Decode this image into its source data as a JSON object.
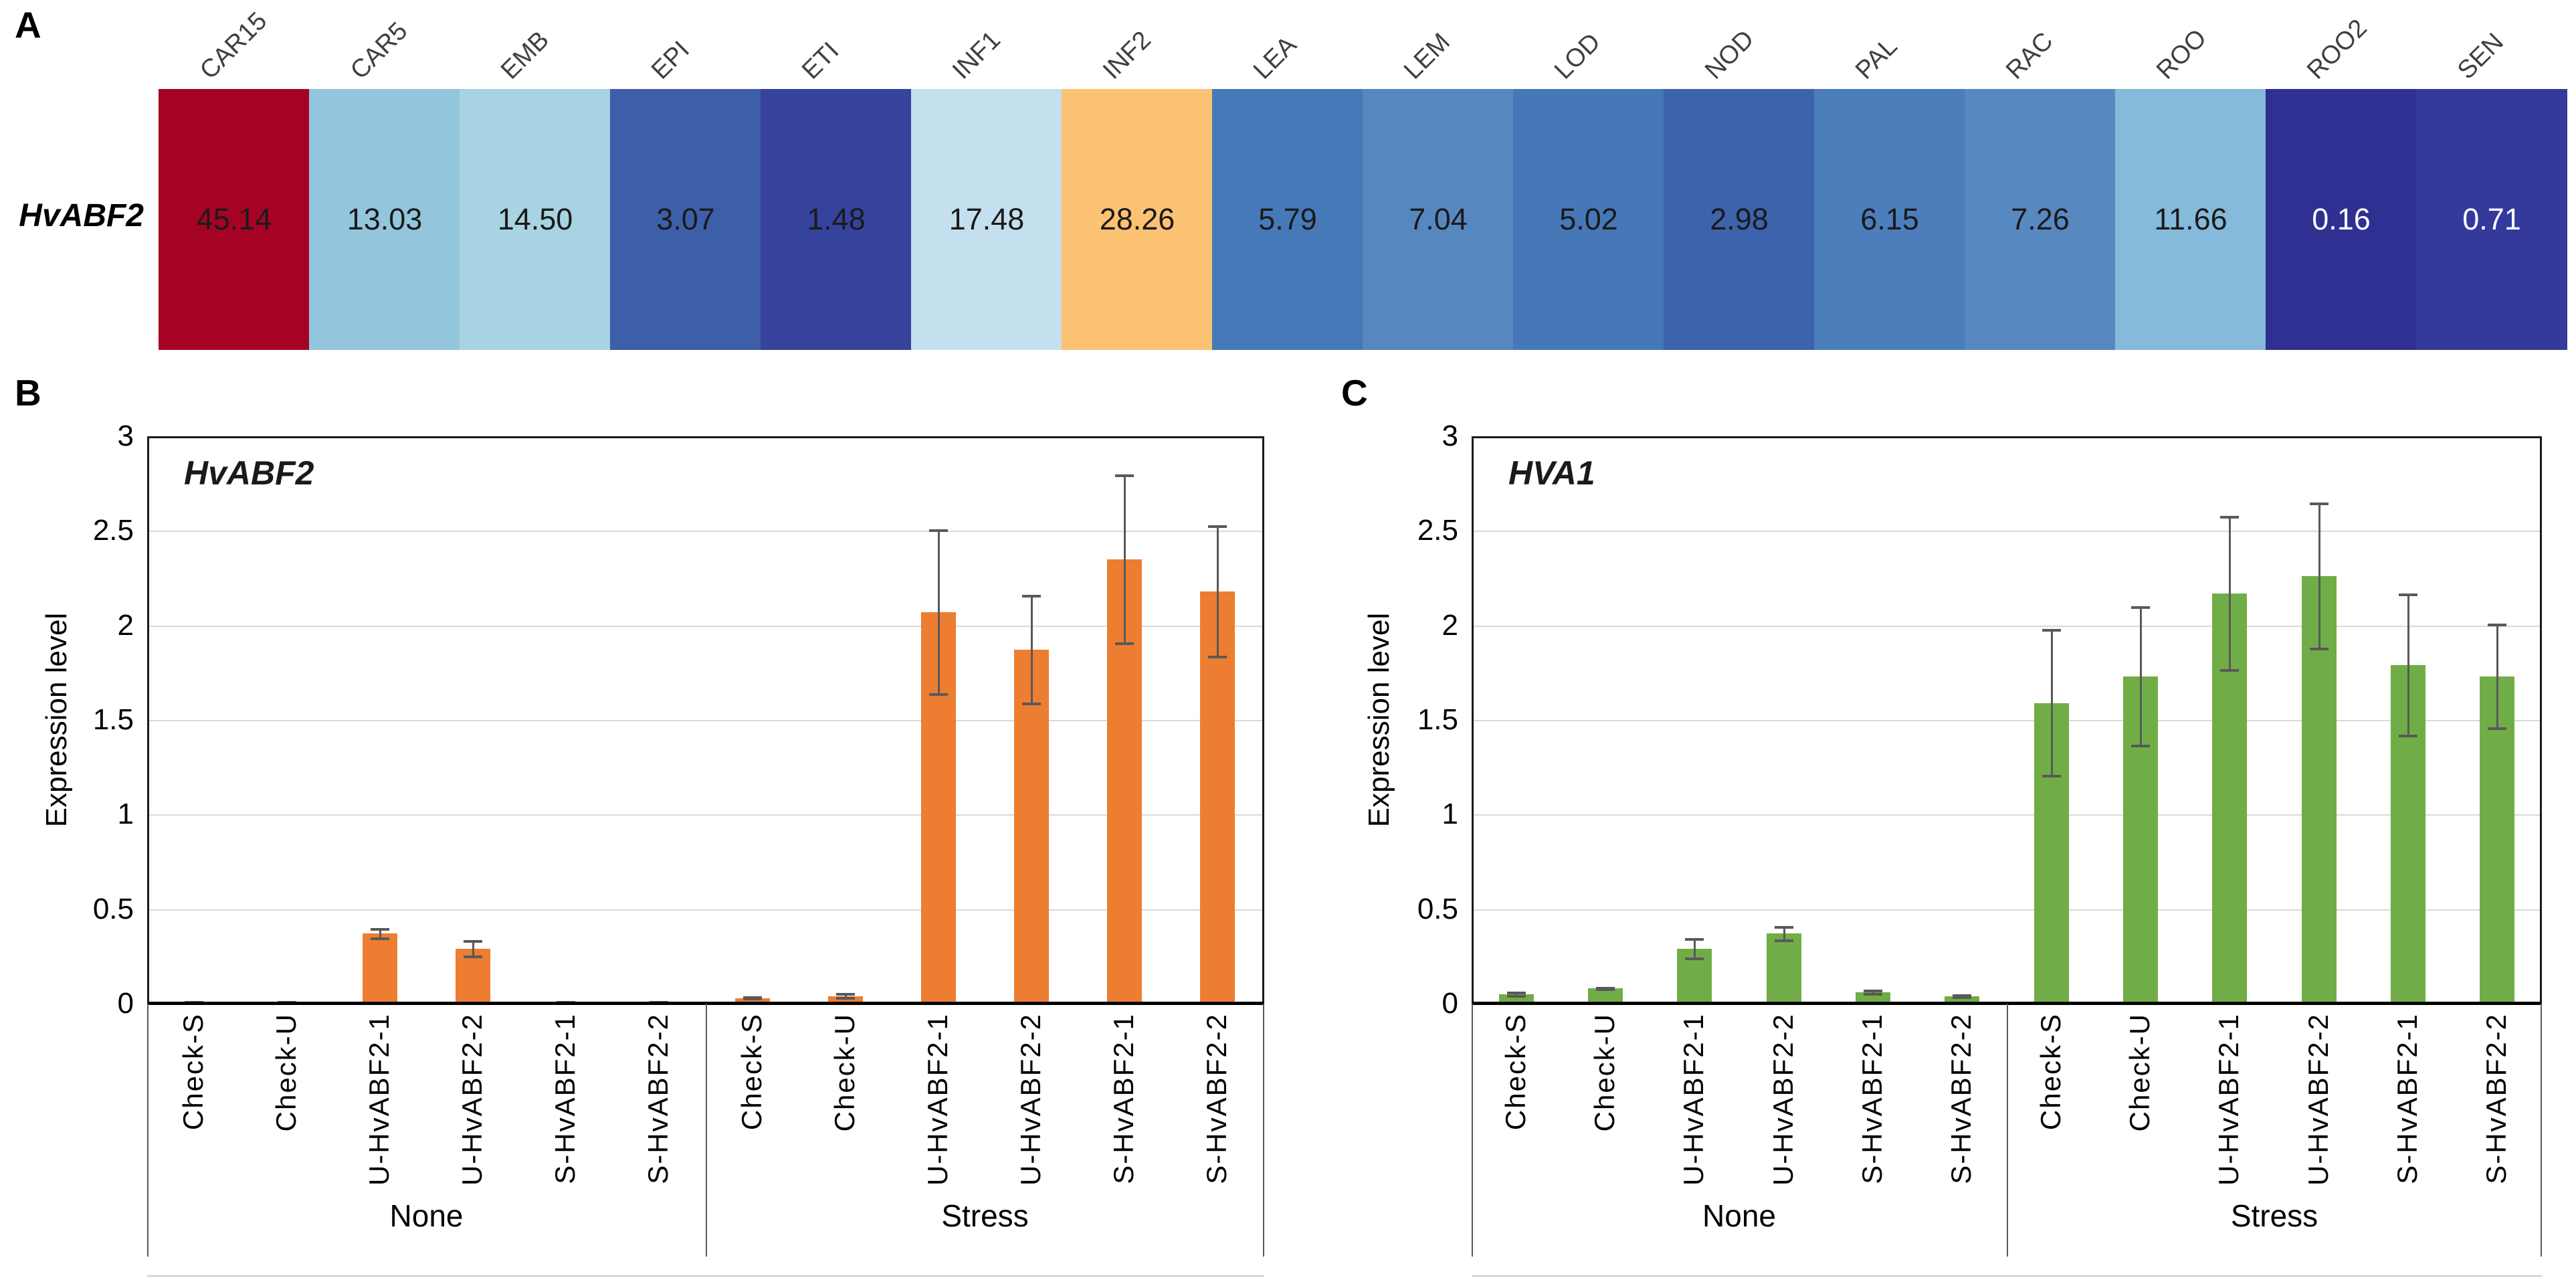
{
  "panels": {
    "a": {
      "label": "A"
    },
    "b": {
      "label": "B"
    },
    "c": {
      "label": "C"
    }
  },
  "chart_data": [
    {
      "id": "heatmap-A",
      "type": "heatmap",
      "row_label": "HvABF2",
      "columns": [
        {
          "label": "CAR15",
          "value": "45.14",
          "color": "#A60324",
          "text": "#1a1a1a"
        },
        {
          "label": "CAR5",
          "value": "13.03",
          "color": "#93C6DD",
          "text": "#1a1a1a"
        },
        {
          "label": "EMB",
          "value": "14.50",
          "color": "#A8D3E2",
          "text": "#1a1a1a"
        },
        {
          "label": "EPI",
          "value": "3.07",
          "color": "#3D5FA9",
          "text": "#1a1a1a"
        },
        {
          "label": "ETI",
          "value": "1.48",
          "color": "#36439D",
          "text": "#1a1a1a"
        },
        {
          "label": "INF1",
          "value": "17.48",
          "color": "#C4E0EE",
          "text": "#1a1a1a"
        },
        {
          "label": "INF2",
          "value": "28.26",
          "color": "#FBC273",
          "text": "#1a1a1a"
        },
        {
          "label": "LEA",
          "value": "5.79",
          "color": "#4679B8",
          "text": "#1a1a1a"
        },
        {
          "label": "LEM",
          "value": "7.04",
          "color": "#5787BF",
          "text": "#1a1a1a"
        },
        {
          "label": "LOD",
          "value": "5.02",
          "color": "#4677B7",
          "text": "#1a1a1a"
        },
        {
          "label": "NOD",
          "value": "2.98",
          "color": "#3C63AC",
          "text": "#1a1a1a"
        },
        {
          "label": "PAL",
          "value": "6.15",
          "color": "#4C7EBB",
          "text": "#1a1a1a"
        },
        {
          "label": "RAC",
          "value": "7.26",
          "color": "#5888C0",
          "text": "#1a1a1a"
        },
        {
          "label": "ROO",
          "value": "11.66",
          "color": "#85BADB",
          "text": "#1a1a1a"
        },
        {
          "label": "ROO2",
          "value": "0.16",
          "color": "#2F3092",
          "text": "#ffffff"
        },
        {
          "label": "SEN",
          "value": "0.71",
          "color": "#343A9C",
          "text": "#ffffff"
        }
      ]
    },
    {
      "id": "B",
      "type": "bar",
      "title": "HvABF2",
      "ylabel": "Expression level",
      "ylim": [
        0,
        3
      ],
      "ytick_labels": [
        "0",
        "0.5",
        "1",
        "1.5",
        "2",
        "2.5",
        "3"
      ],
      "grid": true,
      "legend": "none",
      "bar_color": "#ED7D31",
      "error_color": "#595959",
      "groups": [
        "None",
        "Stress"
      ],
      "categories": [
        "Check-S",
        "Check-U",
        "U-HvABF2-1",
        "U-HvABF2-2",
        "S-HvABF2-1",
        "S-HvABF2-2",
        "Check-S",
        "Check-U",
        "U-HvABF2-1",
        "U-HvABF2-2",
        "S-HvABF2-1",
        "S-HvABF2-2"
      ],
      "values": [
        0.01,
        0.01,
        0.37,
        0.29,
        0.01,
        0.01,
        0.03,
        0.04,
        2.07,
        1.87,
        2.35,
        2.18
      ],
      "errors": [
        0.005,
        0.005,
        0.03,
        0.045,
        0.005,
        0.005,
        0.01,
        0.015,
        0.44,
        0.29,
        0.45,
        0.35
      ]
    },
    {
      "id": "C",
      "type": "bar",
      "title": "HVA1",
      "ylabel": "Expression level",
      "ylim": [
        0,
        3
      ],
      "ytick_labels": [
        "0",
        "0.5",
        "1",
        "1.5",
        "2",
        "2.5",
        "3"
      ],
      "grid": true,
      "legend": "none",
      "bar_color": "#70AD47",
      "error_color": "#595959",
      "groups": [
        "None",
        "Stress"
      ],
      "categories": [
        "Check-S",
        "Check-U",
        "U-HvABF2-1",
        "U-HvABF2-2",
        "S-HvABF2-1",
        "S-HvABF2-2",
        "Check-S",
        "Check-U",
        "U-HvABF2-1",
        "U-HvABF2-2",
        "S-HvABF2-1",
        "S-HvABF2-2"
      ],
      "values": [
        0.05,
        0.08,
        0.29,
        0.37,
        0.06,
        0.04,
        1.59,
        1.73,
        2.17,
        2.26,
        1.79,
        1.73
      ],
      "errors": [
        0.015,
        0.01,
        0.055,
        0.04,
        0.015,
        0.01,
        0.39,
        0.37,
        0.41,
        0.39,
        0.38,
        0.28
      ]
    }
  ]
}
